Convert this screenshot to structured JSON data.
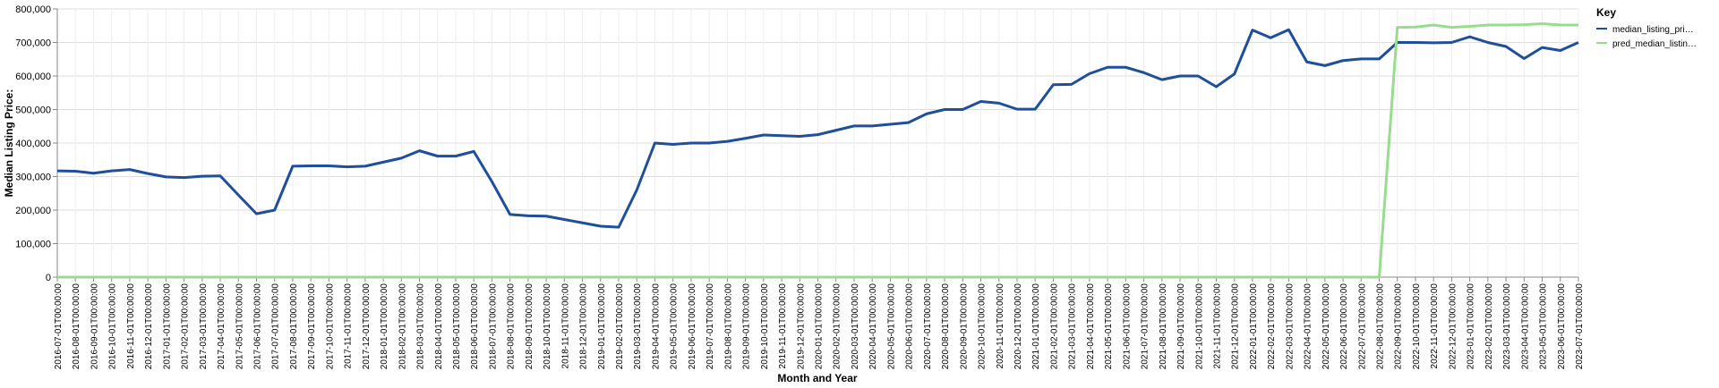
{
  "chart_data": {
    "type": "line",
    "x_label": "Month and Year",
    "y_label": "Median Listing Price:",
    "legend_title": "Key",
    "legend_position": "right",
    "grid": true,
    "categories": [
      "2016-07-01T00:00:00",
      "2016-08-01T00:00:00",
      "2016-09-01T00:00:00",
      "2016-10-01T00:00:00",
      "2016-11-01T00:00:00",
      "2016-12-01T00:00:00",
      "2017-01-01T00:00:00",
      "2017-02-01T00:00:00",
      "2017-03-01T00:00:00",
      "2017-04-01T00:00:00",
      "2017-05-01T00:00:00",
      "2017-06-01T00:00:00",
      "2017-07-01T00:00:00",
      "2017-08-01T00:00:00",
      "2017-09-01T00:00:00",
      "2017-10-01T00:00:00",
      "2017-11-01T00:00:00",
      "2017-12-01T00:00:00",
      "2018-01-01T00:00:00",
      "2018-02-01T00:00:00",
      "2018-03-01T00:00:00",
      "2018-04-01T00:00:00",
      "2018-05-01T00:00:00",
      "2018-06-01T00:00:00",
      "2018-07-01T00:00:00",
      "2018-08-01T00:00:00",
      "2018-09-01T00:00:00",
      "2018-10-01T00:00:00",
      "2018-11-01T00:00:00",
      "2018-12-01T00:00:00",
      "2019-01-01T00:00:00",
      "2019-02-01T00:00:00",
      "2019-03-01T00:00:00",
      "2019-04-01T00:00:00",
      "2019-05-01T00:00:00",
      "2019-06-01T00:00:00",
      "2019-07-01T00:00:00",
      "2019-08-01T00:00:00",
      "2019-09-01T00:00:00",
      "2019-10-01T00:00:00",
      "2019-11-01T00:00:00",
      "2019-12-01T00:00:00",
      "2020-01-01T00:00:00",
      "2020-02-01T00:00:00",
      "2020-03-01T00:00:00",
      "2020-04-01T00:00:00",
      "2020-05-01T00:00:00",
      "2020-06-01T00:00:00",
      "2020-07-01T00:00:00",
      "2020-08-01T00:00:00",
      "2020-09-01T00:00:00",
      "2020-10-01T00:00:00",
      "2020-11-01T00:00:00",
      "2020-12-01T00:00:00",
      "2021-01-01T00:00:00",
      "2021-02-01T00:00:00",
      "2021-03-01T00:00:00",
      "2021-04-01T00:00:00",
      "2021-05-01T00:00:00",
      "2021-06-01T00:00:00",
      "2021-07-01T00:00:00",
      "2021-08-01T00:00:00",
      "2021-09-01T00:00:00",
      "2021-10-01T00:00:00",
      "2021-11-01T00:00:00",
      "2021-12-01T00:00:00",
      "2022-01-01T00:00:00",
      "2022-02-01T00:00:00",
      "2022-03-01T00:00:00",
      "2022-04-01T00:00:00",
      "2022-05-01T00:00:00",
      "2022-06-01T00:00:00",
      "2022-07-01T00:00:00",
      "2022-08-01T00:00:00",
      "2022-09-01T00:00:00",
      "2022-10-01T00:00:00",
      "2022-11-01T00:00:00",
      "2022-12-01T00:00:00",
      "2023-01-01T00:00:00",
      "2023-02-01T00:00:00",
      "2023-03-01T00:00:00",
      "2023-04-01T00:00:00",
      "2023-05-01T00:00:00",
      "2023-06-01T00:00:00",
      "2023-07-01T00:00:00"
    ],
    "series": [
      {
        "name": "median_listing_pri…",
        "color": "#1f4e9a",
        "values": [
          317000,
          316000,
          310000,
          317000,
          321000,
          309000,
          299000,
          297000,
          301000,
          302000,
          245000,
          189000,
          200000,
          331000,
          332000,
          332000,
          329000,
          331000,
          343000,
          355000,
          377000,
          361000,
          361000,
          375000,
          285000,
          187000,
          183000,
          182000,
          172000,
          162000,
          152000,
          149000,
          260000,
          400000,
          396000,
          400000,
          400000,
          405000,
          414000,
          424000,
          422000,
          420000,
          425000,
          438000,
          451000,
          451000,
          456000,
          461000,
          487000,
          500000,
          500000,
          524000,
          519000,
          501000,
          501000,
          574000,
          575000,
          607000,
          626000,
          626000,
          610000,
          589000,
          600000,
          600000,
          568000,
          606000,
          737000,
          714000,
          738000,
          642000,
          631000,
          646000,
          651000,
          651000,
          700000,
          700000,
          699000,
          700000,
          717000,
          700000,
          688000,
          652000,
          685000,
          676000,
          700000
        ]
      },
      {
        "name": "pred_median_listin…",
        "color": "#98dc8e",
        "values": [
          0,
          0,
          0,
          0,
          0,
          0,
          0,
          0,
          0,
          0,
          0,
          0,
          0,
          0,
          0,
          0,
          0,
          0,
          0,
          0,
          0,
          0,
          0,
          0,
          0,
          0,
          0,
          0,
          0,
          0,
          0,
          0,
          0,
          0,
          0,
          0,
          0,
          0,
          0,
          0,
          0,
          0,
          0,
          0,
          0,
          0,
          0,
          0,
          0,
          0,
          0,
          0,
          0,
          0,
          0,
          0,
          0,
          0,
          0,
          0,
          0,
          0,
          0,
          0,
          0,
          0,
          0,
          0,
          0,
          0,
          0,
          0,
          0,
          0,
          745000,
          746000,
          752000,
          745000,
          748000,
          752000,
          752000,
          753000,
          756000,
          752000,
          752000
        ]
      }
    ],
    "ylim": [
      0,
      800000
    ],
    "yticks": [
      0,
      {
        "value": 100000,
        "label": "100,000"
      },
      {
        "value": 200000,
        "label": "200,000"
      },
      {
        "value": 300000,
        "label": "300,000"
      },
      {
        "value": 400000,
        "label": "400,000"
      },
      {
        "value": 500000,
        "label": "500,000"
      },
      {
        "value": 600000,
        "label": "600,000"
      },
      {
        "value": 700000,
        "label": "700,000"
      },
      {
        "value": 800000,
        "label": "800,000"
      }
    ]
  }
}
